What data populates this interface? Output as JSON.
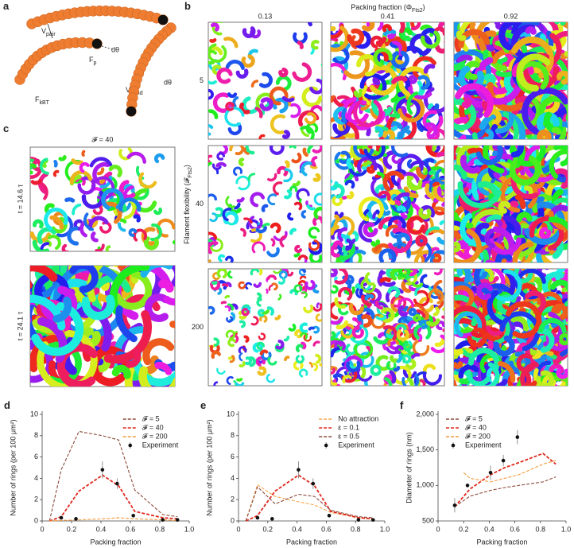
{
  "panels": {
    "a": {
      "label": "a",
      "v_pair": {
        "text": "V",
        "sub": "pair"
      },
      "f_p": {
        "text": "F",
        "sub": "p"
      },
      "d_theta_1": "dθ",
      "f_kbt": {
        "text": "F",
        "sub": "kBT"
      },
      "v_bend": {
        "text": "V",
        "sub": "bend"
      },
      "d_theta_2": "dθ"
    },
    "b": {
      "label": "b",
      "title": {
        "text": "Packing fraction (Φ",
        "sub": "Fts2",
        "tail": ")"
      },
      "columns": [
        "0.13",
        "0.41",
        "0.92"
      ],
      "rows": [
        "5",
        "40",
        "200"
      ],
      "y_label": {
        "text": "Filament flexibility (𝓕",
        "sub": "Fts2",
        "tail": ")"
      }
    },
    "c": {
      "label": "c",
      "title": "𝓕 = 40",
      "times": [
        "t = 14.6 τ",
        "t = 24.1 τ"
      ]
    }
  },
  "chart_data": [
    {
      "type": "line",
      "label": "d",
      "x_label": "Packing fraction",
      "y_label": "Number of rings (per 100 μm²)",
      "xlim": [
        0,
        1
      ],
      "xticks": [
        0,
        0.2,
        0.4,
        0.6,
        0.8,
        {
          "value": 1,
          "label": "1.0"
        }
      ],
      "ylim": [
        0,
        10
      ],
      "yticks": [
        0,
        2,
        4,
        6,
        8,
        10
      ],
      "legend": "upper right",
      "series": [
        {
          "name": "𝓕 = 5",
          "color": "#8c4a3c",
          "linestyle": "dashed",
          "x": [
            0.05,
            0.13,
            0.25,
            0.41,
            0.52,
            0.63,
            0.82,
            0.92
          ],
          "values": [
            0,
            4.8,
            8.4,
            8.0,
            7.6,
            2.9,
            0.6,
            0.4
          ]
        },
        {
          "name": "𝓕 = 40",
          "color": "#e0281e",
          "linestyle": "dashed",
          "x": [
            0.05,
            0.13,
            0.25,
            0.41,
            0.52,
            0.63,
            0.82,
            0.92
          ],
          "values": [
            0,
            0.4,
            2.8,
            4.3,
            3.3,
            0.9,
            0.3,
            0.2
          ]
        },
        {
          "name": "𝓕 = 200",
          "color": "#f39a3c",
          "linestyle": "dashed",
          "x": [
            0.05,
            0.13,
            0.25,
            0.41,
            0.52,
            0.63,
            0.82,
            0.92
          ],
          "values": [
            0,
            0.05,
            0.1,
            0.2,
            0.3,
            0.2,
            0.1,
            0.05
          ]
        },
        {
          "name": "Experiment",
          "color": "#111111",
          "linestyle": "points",
          "x": [
            0.13,
            0.23,
            0.41,
            0.51,
            0.62,
            0.82,
            0.92
          ],
          "values": [
            0.3,
            0.2,
            4.8,
            3.5,
            0.5,
            0.1,
            0.1
          ],
          "errors": [
            0.1,
            0.1,
            0.8,
            0.5,
            0.1,
            0.1,
            0.1
          ]
        }
      ]
    },
    {
      "type": "line",
      "label": "e",
      "x_label": "Packing fraction",
      "y_label": "Number of rings (per 100 μm²)",
      "xlim": [
        0,
        1
      ],
      "xticks": [
        0,
        0.2,
        0.4,
        0.6,
        0.8,
        {
          "value": 1,
          "label": "1.0"
        }
      ],
      "ylim": [
        0,
        10
      ],
      "yticks": [
        0,
        2,
        4,
        6,
        8,
        10
      ],
      "legend": "upper right",
      "series": [
        {
          "name": "No attraction",
          "color": "#f5a650",
          "linestyle": "dashed",
          "x": [
            0.05,
            0.13,
            0.25,
            0.41,
            0.52,
            0.63,
            0.82,
            0.92
          ],
          "values": [
            0,
            3.4,
            2.3,
            1.8,
            1.5,
            0.8,
            0.3,
            0.2
          ]
        },
        {
          "name": "ε = 0.1",
          "color": "#e0281e",
          "linestyle": "dashed",
          "x": [
            0.05,
            0.13,
            0.25,
            0.41,
            0.52,
            0.63,
            0.82,
            0.92
          ],
          "values": [
            0,
            0.5,
            2.8,
            4.3,
            3.3,
            0.9,
            0.3,
            0.2
          ]
        },
        {
          "name": "ε = 0.5",
          "color": "#8c4a3c",
          "linestyle": "dashed",
          "x": [
            0.05,
            0.13,
            0.25,
            0.41,
            0.52,
            0.63,
            0.82,
            0.92
          ],
          "values": [
            0,
            3.2,
            1.6,
            2.5,
            2.3,
            1.0,
            0.4,
            0.3
          ]
        },
        {
          "name": "Experiment",
          "color": "#111111",
          "linestyle": "points",
          "x": [
            0.13,
            0.23,
            0.41,
            0.51,
            0.62,
            0.82,
            0.92
          ],
          "values": [
            0.3,
            0.2,
            4.8,
            3.5,
            0.5,
            0.1,
            0.1
          ],
          "errors": [
            0.1,
            0.1,
            0.8,
            0.5,
            0.1,
            0.1,
            0.1
          ]
        }
      ]
    },
    {
      "type": "line",
      "label": "f",
      "x_label": "Packing fraction",
      "y_label": "Diameter of rings (nm)",
      "xlim": [
        0,
        1
      ],
      "xticks": [
        0,
        0.2,
        0.4,
        0.6,
        0.8,
        {
          "value": 1,
          "label": "1.0"
        }
      ],
      "ylim": [
        500,
        2000
      ],
      "yticks": [
        500,
        {
          "value": 1000,
          "label": "1,000"
        },
        {
          "value": 1500,
          "label": "1,500"
        },
        {
          "value": 2000,
          "label": "2,000"
        }
      ],
      "legend": "upper left",
      "series": [
        {
          "name": "𝓕 = 5",
          "color": "#8c4a3c",
          "linestyle": "dashed",
          "x": [
            0.13,
            0.25,
            0.41,
            0.52,
            0.63,
            0.82,
            0.92
          ],
          "values": [
            700,
            850,
            930,
            970,
            1000,
            1050,
            1120
          ]
        },
        {
          "name": "𝓕 = 40",
          "color": "#e0281e",
          "linestyle": "dashed",
          "x": [
            0.13,
            0.25,
            0.41,
            0.52,
            0.63,
            0.82,
            0.92
          ],
          "values": [
            700,
            950,
            1150,
            1250,
            1320,
            1450,
            1300
          ]
        },
        {
          "name": "𝓕 = 200",
          "color": "#f39a3c",
          "linestyle": "dashed",
          "x": [
            0.2,
            0.25,
            0.41,
            0.52,
            0.63,
            0.82,
            0.92
          ],
          "values": [
            1180,
            1100,
            1050,
            1100,
            1150,
            1300,
            1350
          ]
        },
        {
          "name": "Experiment",
          "color": "#111111",
          "linestyle": "points",
          "x": [
            0.13,
            0.23,
            0.41,
            0.51,
            0.62
          ],
          "values": [
            720,
            1000,
            1180,
            1350,
            1680
          ],
          "errors": [
            100,
            20,
            100,
            80,
            100
          ]
        }
      ]
    }
  ]
}
